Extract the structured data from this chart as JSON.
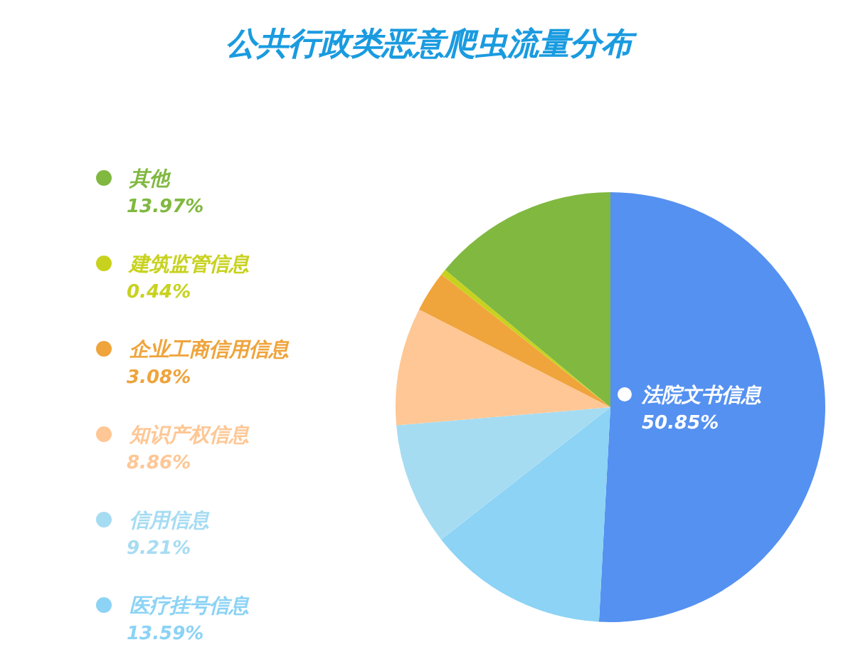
{
  "chart_data": {
    "type": "pie",
    "title": "公共行政类恶意爬虫流量分布",
    "categories": [
      "法院文书信息",
      "医疗挂号信息",
      "信用信息",
      "知识产权信息",
      "企业工商信用信息",
      "建筑监管信息",
      "其他"
    ],
    "values": [
      50.85,
      13.59,
      9.21,
      8.86,
      3.08,
      0.44,
      13.97
    ],
    "colors": [
      "#5591f0",
      "#8cd3f5",
      "#a6dcf2",
      "#fec795",
      "#efa43c",
      "#c8d21e",
      "#80b840"
    ],
    "value_labels": [
      "50.85%",
      "13.59%",
      "9.21%",
      "8.86%",
      "3.08%",
      "0.44%",
      "13.97%"
    ],
    "legend": "left"
  }
}
